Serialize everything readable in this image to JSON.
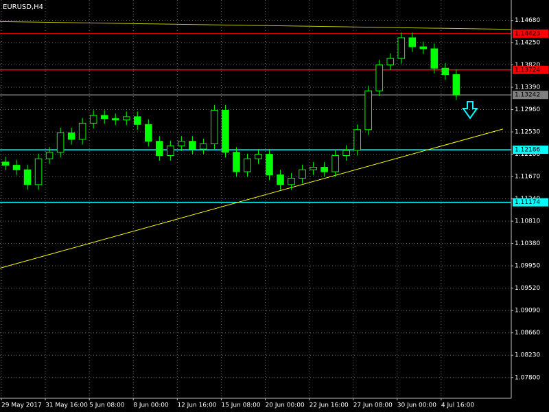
{
  "chart_data": {
    "type": "candlestick",
    "title": "EURUSD,H4",
    "grid": true,
    "xlim": [
      0,
      186
    ],
    "ylim": [
      1.074,
      1.1507
    ],
    "xticks": [
      {
        "value": 0,
        "label": "29 May 2017"
      },
      {
        "value": 16,
        "label": "31 May 16:00"
      },
      {
        "value": 32,
        "label": "5 Jun 08:00"
      },
      {
        "value": 48,
        "label": "8 Jun 00:00"
      },
      {
        "value": 64,
        "label": "12 Jun 16:00"
      },
      {
        "value": 80,
        "label": "15 Jun 08:00"
      },
      {
        "value": 96,
        "label": "20 Jun 00:00"
      },
      {
        "value": 112,
        "label": "22 Jun 16:00"
      },
      {
        "value": 128,
        "label": "27 Jun 08:00"
      },
      {
        "value": 144,
        "label": "30 Jun 00:00"
      },
      {
        "value": 160,
        "label": "4 Jul 16:00"
      }
    ],
    "yticks": [
      {
        "value": 1.1468,
        "label": "1.14680"
      },
      {
        "value": 1.1425,
        "label": "1.14250"
      },
      {
        "value": 1.1382,
        "label": "1.13820"
      },
      {
        "value": 1.1339,
        "label": "1.13390"
      },
      {
        "value": 1.1296,
        "label": "1.12960"
      },
      {
        "value": 1.1253,
        "label": "1.12530"
      },
      {
        "value": 1.121,
        "label": "1.12100"
      },
      {
        "value": 1.1167,
        "label": "1.11670"
      },
      {
        "value": 1.1124,
        "label": "1.11240"
      },
      {
        "value": 1.1081,
        "label": "1.10810"
      },
      {
        "value": 1.1038,
        "label": "1.10380"
      },
      {
        "value": 1.0995,
        "label": "1.09950"
      },
      {
        "value": 1.0952,
        "label": "1.09520"
      },
      {
        "value": 1.0909,
        "label": "1.09090"
      },
      {
        "value": 1.0866,
        "label": "1.08660"
      },
      {
        "value": 1.0823,
        "label": "1.08230"
      },
      {
        "value": 1.078,
        "label": "1.07800"
      }
    ],
    "color": "#00ff00",
    "x": [
      2,
      6,
      10,
      14,
      18,
      22,
      26,
      30,
      34,
      38,
      42,
      46,
      50,
      54,
      58,
      62,
      66,
      70,
      74,
      78,
      82,
      86,
      90,
      94,
      98,
      102,
      106,
      110,
      114,
      118,
      122,
      126,
      130,
      134,
      138,
      142,
      146,
      150,
      154,
      158,
      162,
      166
    ],
    "open": [
      1.1195,
      1.11888,
      1.118,
      1.11514,
      1.12012,
      1.12137,
      1.12511,
      1.12386,
      1.12698,
      1.12847,
      1.12785,
      1.1276,
      1.12823,
      1.12673,
      1.12349,
      1.12075,
      1.12262,
      1.12349,
      1.12199,
      1.12299,
      1.12947,
      1.12137,
      1.11763,
      1.12012,
      1.121,
      1.11701,
      1.11514,
      1.11638,
      1.118,
      1.1185,
      1.11763,
      1.12075,
      1.12174,
      1.12573,
      1.13321,
      1.1382,
      1.13944,
      1.14343,
      1.14169,
      1.14131,
      1.13757,
      1.13633
    ],
    "high": [
      1.1205,
      1.11988,
      1.119,
      1.12112,
      1.12237,
      1.12611,
      1.12611,
      1.12798,
      1.12947,
      1.12947,
      1.12885,
      1.12923,
      1.12923,
      1.12773,
      1.12449,
      1.12362,
      1.12449,
      1.12449,
      1.12399,
      1.13047,
      1.13047,
      1.12237,
      1.12112,
      1.122,
      1.122,
      1.11801,
      1.11738,
      1.119,
      1.1195,
      1.1195,
      1.12175,
      1.12274,
      1.12673,
      1.13421,
      1.1392,
      1.14044,
      1.14443,
      1.14443,
      1.14269,
      1.14231,
      1.13857,
      1.13733
    ],
    "low": [
      1.11788,
      1.117,
      1.11414,
      1.11414,
      1.11912,
      1.12037,
      1.12286,
      1.12286,
      1.12598,
      1.12685,
      1.1266,
      1.1266,
      1.12573,
      1.12249,
      1.11975,
      1.11975,
      1.12162,
      1.12099,
      1.12099,
      1.12199,
      1.12037,
      1.11663,
      1.11663,
      1.11912,
      1.11601,
      1.11414,
      1.11414,
      1.11538,
      1.117,
      1.11663,
      1.11663,
      1.11975,
      1.12074,
      1.12473,
      1.13221,
      1.1372,
      1.13844,
      1.14069,
      1.14031,
      1.13657,
      1.13533,
      1.13142
    ],
    "close": [
      1.11888,
      1.118,
      1.11514,
      1.12012,
      1.12137,
      1.12511,
      1.12386,
      1.12698,
      1.12847,
      1.12785,
      1.1276,
      1.12823,
      1.12673,
      1.12349,
      1.12075,
      1.12262,
      1.12349,
      1.12199,
      1.12299,
      1.12947,
      1.12137,
      1.11763,
      1.12012,
      1.121,
      1.11701,
      1.11514,
      1.11638,
      1.118,
      1.1185,
      1.11763,
      1.12075,
      1.12174,
      1.12573,
      1.13321,
      1.1382,
      1.13944,
      1.14343,
      1.14169,
      1.14131,
      1.13757,
      1.13633,
      1.13242
    ],
    "levels": [
      {
        "value": 1.14423,
        "color": "#ff0000"
      },
      {
        "value": 1.13724,
        "color": "#ff0000"
      },
      {
        "value": 1.13242,
        "color": "#808080"
      },
      {
        "value": 1.12186,
        "color": "#00ffff"
      },
      {
        "value": 1.11174,
        "color": "#00ffff"
      }
    ],
    "trendlines": [
      {
        "x": [
          0,
          183
        ],
        "y": [
          1.09906,
          1.12586
        ],
        "color": "#ffff00"
      },
      {
        "x": [
          0,
          186
        ],
        "y": [
          1.14655,
          1.14505
        ],
        "color": "#c8c800"
      }
    ]
  }
}
